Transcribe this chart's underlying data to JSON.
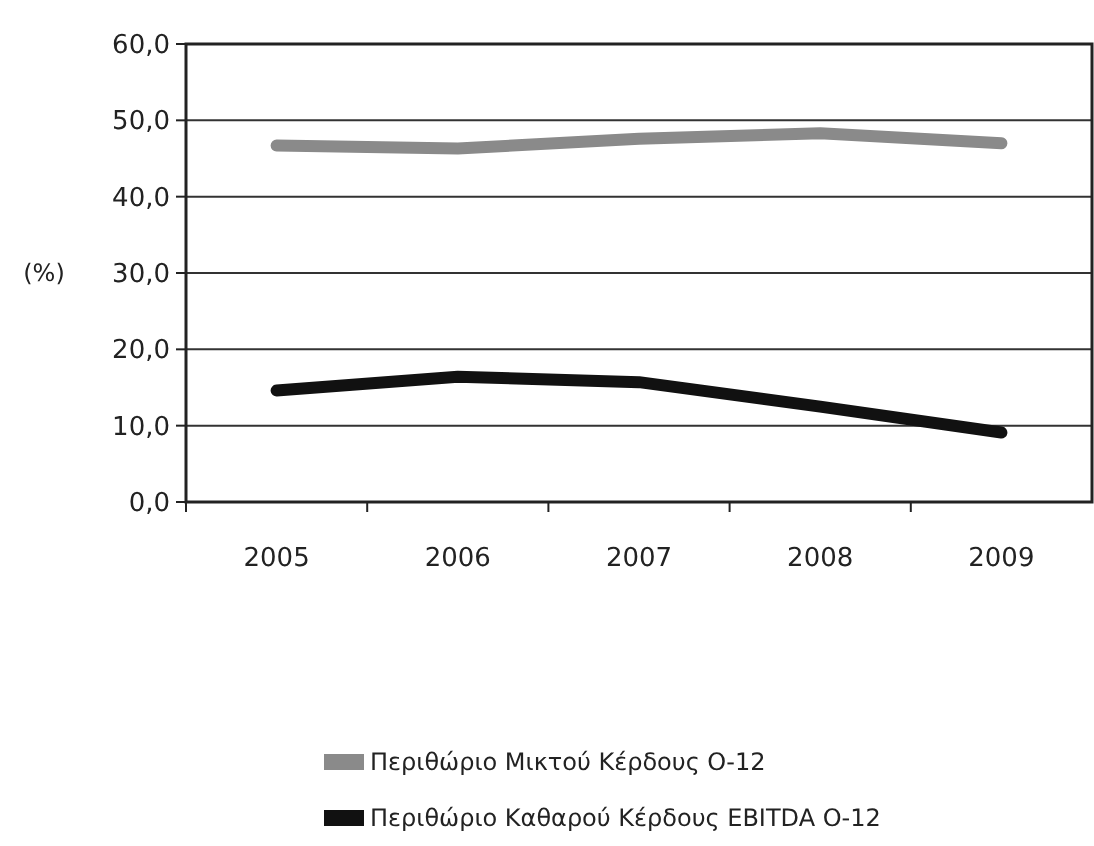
{
  "chart_data": {
    "type": "line",
    "ylabel": "(%)",
    "categories": [
      "2005",
      "2006",
      "2007",
      "2008",
      "2009"
    ],
    "series": [
      {
        "name": "Περιθώριο Μικτού Κέρδους Ο-12",
        "color": "#8a8a8a",
        "values": [
          46.7,
          46.3,
          47.6,
          48.3,
          47.0
        ]
      },
      {
        "name": "Περιθώριο Καθαρού Κέρδους EBITDA Ο-12",
        "color": "#111111",
        "values": [
          14.6,
          16.4,
          15.7,
          12.5,
          9.1
        ]
      }
    ],
    "ylim": [
      0,
      60
    ],
    "yticks": [
      {
        "value": 0,
        "label": "0,0"
      },
      {
        "value": 10,
        "label": "10,0"
      },
      {
        "value": 20,
        "label": "20,0"
      },
      {
        "value": 30,
        "label": "30,0"
      },
      {
        "value": 40,
        "label": "40,0"
      },
      {
        "value": 50,
        "label": "50,0"
      },
      {
        "value": 60,
        "label": "60,0"
      }
    ],
    "grid": "y",
    "legend": "bottom",
    "marker": "none",
    "line_style": "solid"
  }
}
